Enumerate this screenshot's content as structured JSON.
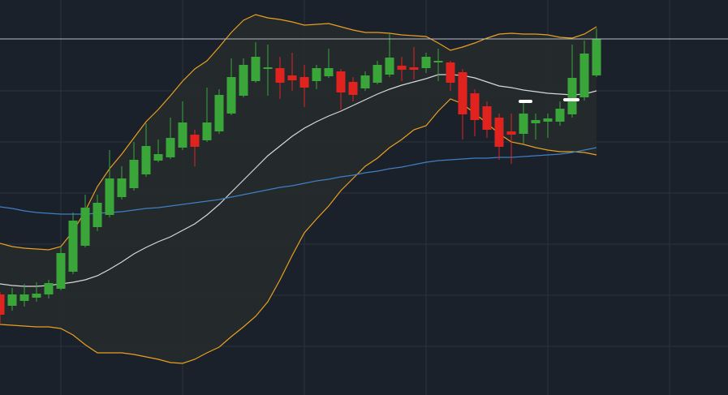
{
  "chart_data": {
    "type": "candlestick",
    "background": "#1b212b",
    "up_color": "#3aa63a",
    "down_color": "#e0231f",
    "band_fill": "#262a2c",
    "grid": true,
    "grid_color": "#2b323d",
    "xlim": [
      0,
      897
    ],
    "ylim": [
      0,
      487
    ],
    "xticks": [
      75,
      225,
      375,
      525,
      675,
      825
    ],
    "yticks": [
      60,
      123,
      186,
      249,
      312,
      375
    ],
    "x": [
      0,
      15,
      30,
      45,
      60,
      75,
      90,
      105,
      120,
      135,
      150,
      165,
      180,
      195,
      210,
      225,
      240,
      255,
      270,
      285,
      300,
      315,
      330,
      345,
      360,
      375,
      390,
      405,
      420,
      435,
      450,
      465,
      480,
      495,
      510,
      525,
      540,
      555,
      570,
      585,
      600,
      615,
      630,
      645,
      660,
      675,
      690,
      705,
      720,
      735
    ],
    "open": [
      124,
      110,
      116,
      120,
      124,
      131,
      152,
      184,
      207,
      222,
      244,
      255,
      272,
      289,
      293,
      305,
      321,
      314,
      325,
      347,
      369,
      387,
      402,
      403,
      394,
      392,
      387,
      393,
      399,
      386,
      378,
      385,
      395,
      406,
      404,
      403,
      410,
      410,
      398,
      372,
      356,
      342,
      325,
      322,
      335,
      337,
      337,
      346,
      367,
      394
    ],
    "high": [
      127,
      132,
      137,
      139,
      142,
      182,
      225,
      247,
      247,
      302,
      282,
      312,
      335,
      315,
      342,
      362,
      327,
      379,
      377,
      415,
      415,
      435,
      432,
      417,
      422,
      407,
      407,
      427,
      402,
      392,
      399,
      412,
      447,
      417,
      429,
      422,
      427,
      412,
      402,
      377,
      362,
      347,
      347,
      362,
      347,
      347,
      362,
      432,
      437,
      452
    ],
    "low": [
      87,
      104,
      109,
      115,
      119,
      129,
      149,
      182,
      202,
      219,
      241,
      252,
      269,
      287,
      291,
      302,
      282,
      312,
      322,
      345,
      367,
      385,
      369,
      365,
      375,
      355,
      377,
      391,
      352,
      362,
      375,
      383,
      392,
      387,
      389,
      397,
      387,
      375,
      315,
      319,
      317,
      290,
      285,
      310,
      315,
      317,
      332,
      342,
      363,
      392
    ],
    "close": [
      99,
      124,
      124,
      125,
      138,
      175,
      215,
      231,
      237,
      267,
      267,
      290,
      307,
      297,
      317,
      336,
      306,
      336,
      370,
      392,
      407,
      417,
      404,
      385,
      388,
      379,
      403,
      403,
      373,
      370,
      394,
      407,
      416,
      401,
      401,
      417,
      412,
      385,
      346,
      339,
      327,
      306,
      321,
      347,
      339,
      341,
      353,
      391,
      421,
      439
    ],
    "series": [
      {
        "color": "#e8a020",
        "values": [
          187,
          183,
          181,
          180,
          179,
          183,
          202,
          227,
          257,
          279,
          297,
          317,
          337,
          352,
          369,
          387,
          402,
          412,
          429,
          447,
          462,
          469,
          465,
          463,
          460,
          456,
          457,
          458,
          454,
          450,
          447,
          447,
          446,
          444,
          443,
          442,
          434,
          425,
          429,
          434,
          440,
          445,
          446,
          445,
          445,
          444,
          441,
          440,
          445,
          454
        ]
      },
      {
        "color": "#e8a020",
        "values": [
          87,
          86,
          85,
          84,
          84,
          82,
          74,
          62,
          52,
          52,
          52,
          50,
          47,
          44,
          40,
          39,
          44,
          52,
          59,
          72,
          84,
          97,
          115,
          142,
          172,
          200,
          217,
          233,
          252,
          267,
          282,
          292,
          305,
          315,
          327,
          332,
          350,
          365,
          359,
          347,
          335,
          322,
          312,
          309,
          305,
          302,
          300,
          300,
          299,
          296
        ]
      },
      {
        "color": "#d8d8d8",
        "values": [
          137,
          135,
          134,
          134,
          135,
          137,
          139,
          142,
          147,
          155,
          164,
          174,
          182,
          189,
          195,
          203,
          211,
          222,
          235,
          250,
          265,
          280,
          295,
          307,
          319,
          329,
          337,
          344,
          350,
          357,
          364,
          371,
          377,
          382,
          386,
          390,
          395,
          395,
          394,
          391,
          386,
          381,
          379,
          376,
          374,
          372,
          371,
          370,
          371,
          375
        ]
      },
      {
        "color": "#3f7fc4",
        "values": [
          232,
          230,
          227,
          225,
          224,
          223,
          223,
          223,
          224,
          225,
          226,
          228,
          230,
          231,
          233,
          235,
          237,
          239,
          241,
          244,
          247,
          250,
          253,
          256,
          258,
          261,
          264,
          266,
          269,
          271,
          274,
          276,
          279,
          281,
          284,
          287,
          289,
          290,
          291,
          292,
          292,
          293,
          293,
          294,
          295,
          296,
          297,
          299,
          302,
          305
        ]
      }
    ]
  }
}
